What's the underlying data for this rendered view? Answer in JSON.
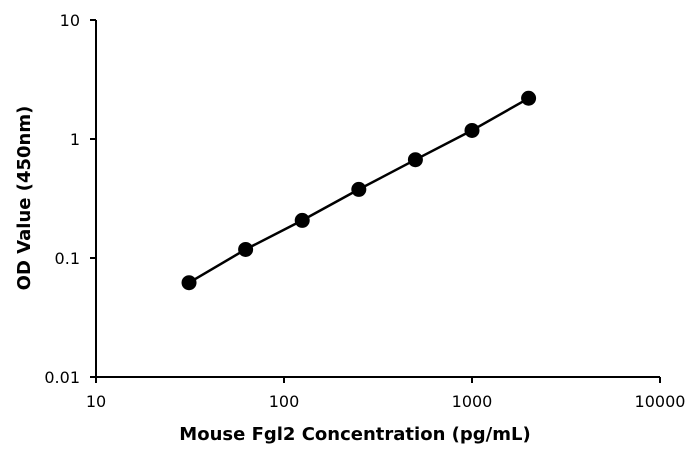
{
  "chart_data": {
    "type": "scatter",
    "title": "",
    "xlabel": "Mouse Fgl2 Concentration (pg/mL)",
    "ylabel": "OD Value (450nm)",
    "x_scale": "log",
    "y_scale": "log",
    "xlim": [
      10,
      10000
    ],
    "ylim": [
      0.01,
      10
    ],
    "x_ticks": [
      10,
      100,
      1000,
      10000
    ],
    "x_tick_labels": [
      "10",
      "100",
      "1000",
      "10000"
    ],
    "y_ticks": [
      0.01,
      0.1,
      1,
      10
    ],
    "y_tick_labels": [
      "0.01",
      "0.1",
      "1",
      "10"
    ],
    "grid": false,
    "legend": false,
    "marker_color": "#000000",
    "line_color": "#000000",
    "series": [
      {
        "points": [
          {
            "x": 31.25,
            "y": 0.062
          },
          {
            "x": 62.5,
            "y": 0.118
          },
          {
            "x": 125,
            "y": 0.207
          },
          {
            "x": 250,
            "y": 0.377
          },
          {
            "x": 500,
            "y": 0.67
          },
          {
            "x": 1000,
            "y": 1.18
          },
          {
            "x": 2000,
            "y": 2.2
          }
        ]
      }
    ]
  }
}
